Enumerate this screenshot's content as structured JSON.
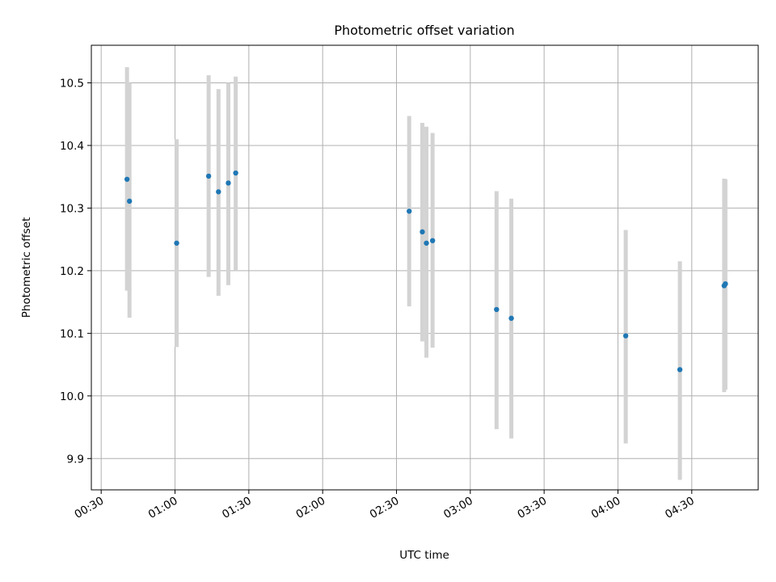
{
  "chart_data": {
    "type": "scatter",
    "title": "Photometric offset variation",
    "xlabel": "UTC time",
    "ylabel": "Photometric offset",
    "xlim": [
      "00:26",
      "04:57"
    ],
    "ylim": [
      9.85,
      10.56
    ],
    "grid": true,
    "x_ticks": [
      "00:30",
      "01:00",
      "01:30",
      "02:00",
      "02:30",
      "03:00",
      "03:30",
      "04:00",
      "04:30"
    ],
    "y_ticks": [
      "9.9",
      "10.0",
      "10.1",
      "10.2",
      "10.3",
      "10.4",
      "10.5"
    ],
    "series": [
      {
        "marker_color": "#1f77b4",
        "errorbar_color": "#d3d3d3",
        "points": [
          {
            "x": "00:40:30",
            "y": 10.346,
            "ymin": 10.168,
            "ymax": 10.525
          },
          {
            "x": "00:41:30",
            "y": 10.311,
            "ymin": 10.125,
            "ymax": 10.5
          },
          {
            "x": "01:00:40",
            "y": 10.244,
            "ymin": 10.078,
            "ymax": 10.41
          },
          {
            "x": "01:13:40",
            "y": 10.351,
            "ymin": 10.19,
            "ymax": 10.512
          },
          {
            "x": "01:17:40",
            "y": 10.326,
            "ymin": 10.16,
            "ymax": 10.49
          },
          {
            "x": "01:21:40",
            "y": 10.34,
            "ymin": 10.177,
            "ymax": 10.5
          },
          {
            "x": "01:24:40",
            "y": 10.356,
            "ymin": 10.2,
            "ymax": 10.51
          },
          {
            "x": "02:35:10",
            "y": 10.295,
            "ymin": 10.143,
            "ymax": 10.447
          },
          {
            "x": "02:40:30",
            "y": 10.262,
            "ymin": 10.087,
            "ymax": 10.436
          },
          {
            "x": "02:42:10",
            "y": 10.244,
            "ymin": 10.061,
            "ymax": 10.43
          },
          {
            "x": "02:44:40",
            "y": 10.248,
            "ymin": 10.077,
            "ymax": 10.42
          },
          {
            "x": "03:10:40",
            "y": 10.138,
            "ymin": 9.947,
            "ymax": 10.327
          },
          {
            "x": "03:16:40",
            "y": 10.124,
            "ymin": 9.932,
            "ymax": 10.315
          },
          {
            "x": "04:03:10",
            "y": 10.096,
            "ymin": 9.924,
            "ymax": 10.265
          },
          {
            "x": "04:25:10",
            "y": 10.042,
            "ymin": 9.866,
            "ymax": 10.215
          },
          {
            "x": "04:43:10",
            "y": 10.176,
            "ymin": 10.006,
            "ymax": 10.347
          },
          {
            "x": "04:43:40",
            "y": 10.179,
            "ymin": 10.01,
            "ymax": 10.346
          }
        ]
      }
    ]
  }
}
